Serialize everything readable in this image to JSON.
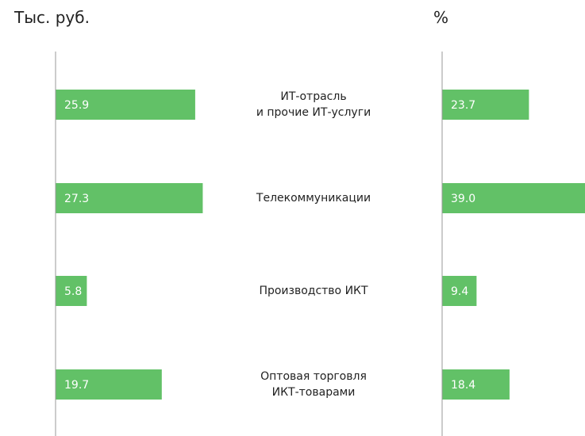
{
  "chart_data": [
    {
      "type": "bar",
      "title": "Тыс. руб.",
      "categories": [
        "ИТ-отрасль\nи прочие ИТ-услуги",
        "Телекоммуникации",
        "Производство ИКТ",
        "Оптовая торговля\nИКТ-товарами"
      ],
      "values": [
        25.9,
        27.3,
        5.8,
        19.7
      ],
      "value_labels": [
        "25.9",
        "27.3",
        "5.8",
        "19.7"
      ],
      "color": "#62c167",
      "xlim": [
        0,
        26.5
      ]
    },
    {
      "type": "bar",
      "title": "%",
      "values": [
        23.7,
        39.0,
        9.4,
        18.4
      ],
      "value_labels": [
        "23.7",
        "39.0",
        "9.4",
        "18.4"
      ],
      "color": "#62c167",
      "xlim": [
        0,
        39
      ]
    }
  ]
}
